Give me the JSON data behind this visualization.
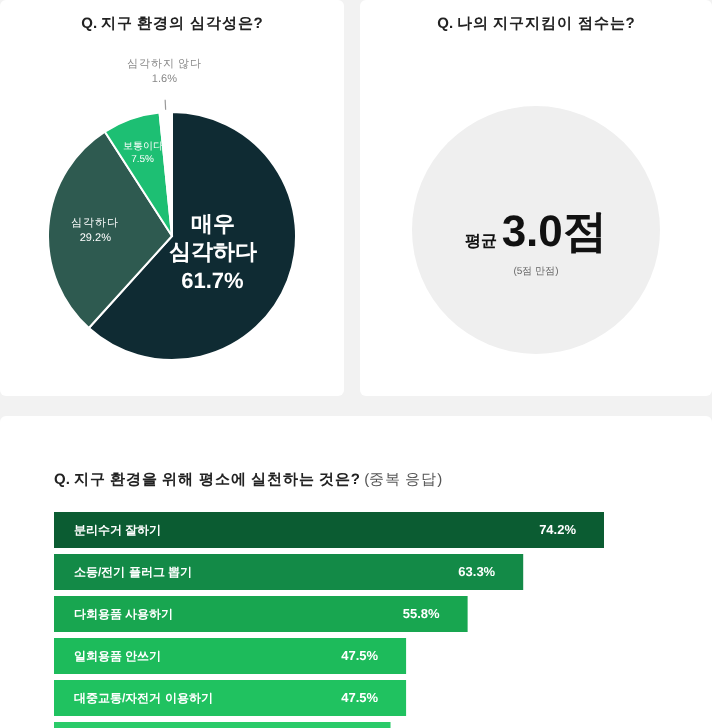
{
  "chart_data": [
    {
      "type": "pie",
      "title": "Q. 지구 환경의 심각성은?",
      "categories": [
        "매우 심각하다",
        "심각하다",
        "보통이다",
        "심각하지 않다"
      ],
      "values": [
        61.7,
        29.2,
        7.5,
        1.6
      ],
      "colors": [
        "#0f2b33",
        "#2e5a50",
        "#1dbf73",
        "#ffffff"
      ],
      "value_labels": [
        "61.7%",
        "29.2%",
        "7.5%",
        "1.6%"
      ]
    },
    {
      "type": "other",
      "title": "Q. 나의 지구지킴이 점수는?",
      "annotations": [
        "평균",
        "3.0점",
        "(5점 만점)"
      ]
    },
    {
      "type": "bar",
      "orientation": "horizontal",
      "title": "Q. 지구 환경을 위해 평소에 실천하는 것은?",
      "subtitle": "(중복 응답)",
      "categories": [
        "분리수거 잘하기",
        "소등/전기 플러그 뽑기",
        "다회용품 사용하기",
        "일회용품 안쓰기",
        "대중교통/자전거 이용하기",
        null
      ],
      "values": [
        74.2,
        63.3,
        55.8,
        47.5,
        47.5,
        45.4
      ],
      "colors": [
        "#0b5c32",
        "#138a47",
        "#18a650",
        "#1dbb5b",
        "#20c260",
        "#2acb69"
      ],
      "value_labels": [
        "74.2%",
        "63.3%",
        "55.8%",
        "47.5%",
        "47.5%",
        null
      ]
    }
  ]
}
